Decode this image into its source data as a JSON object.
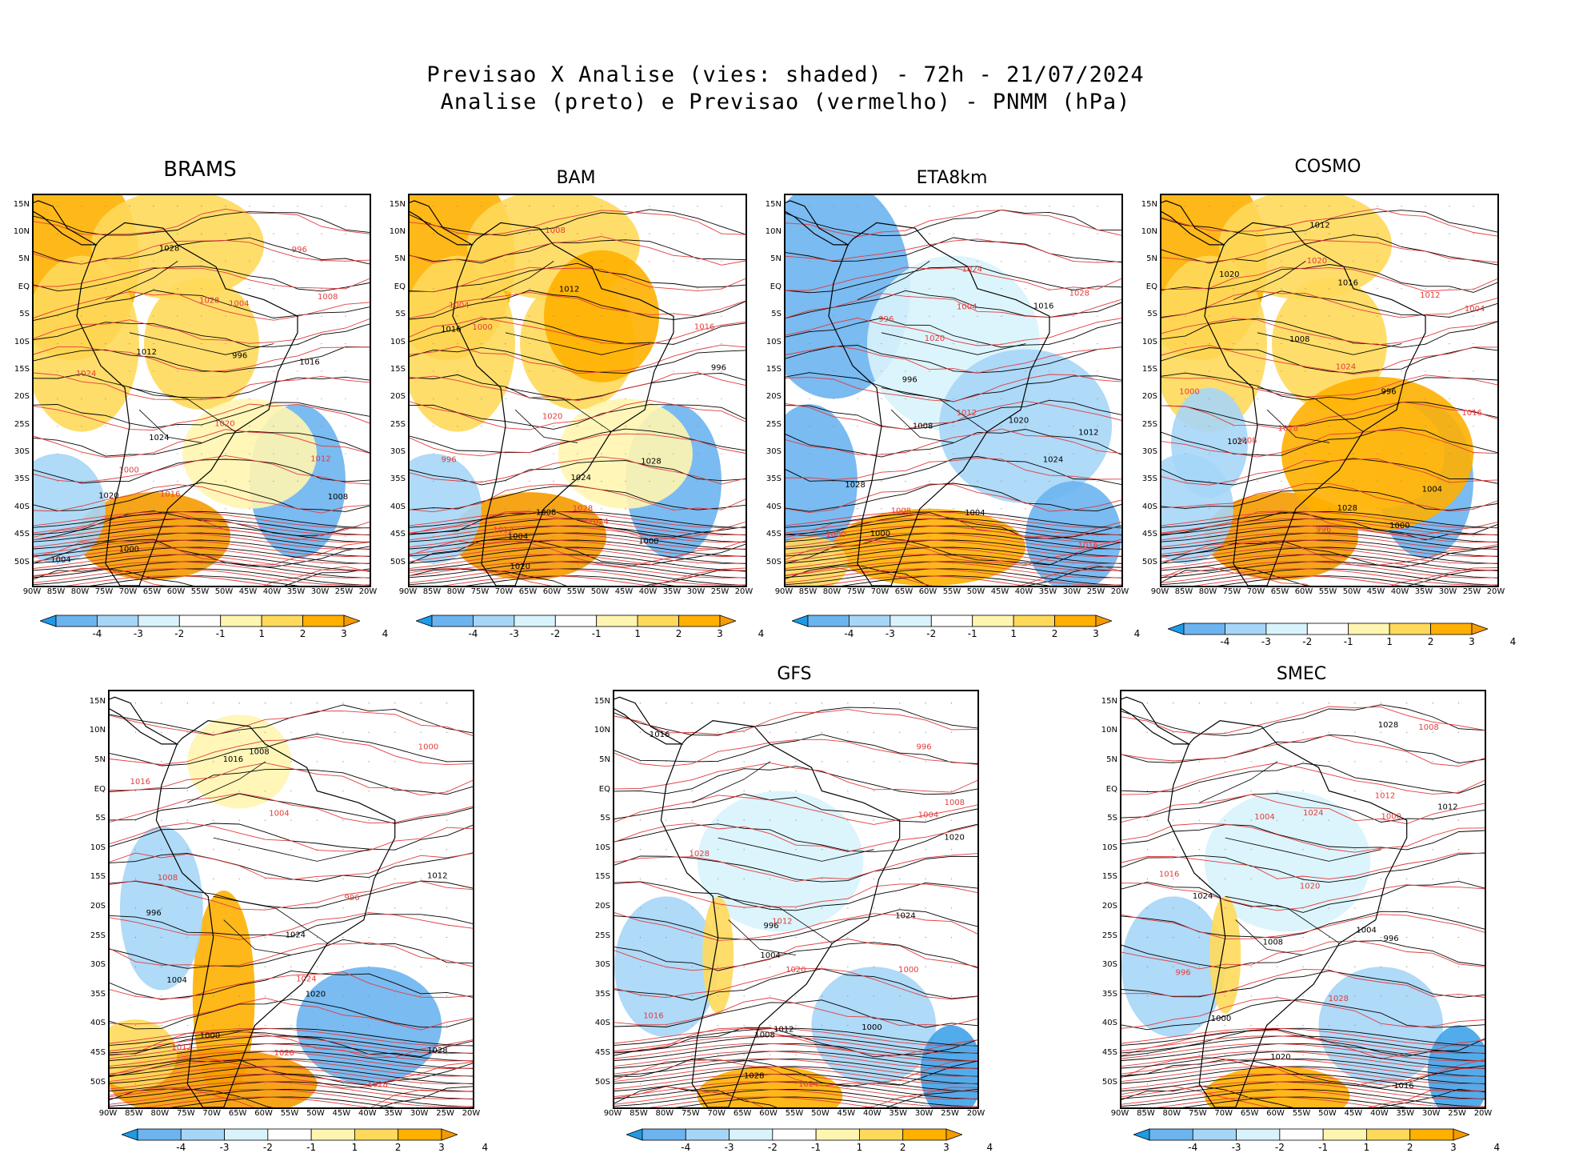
{
  "header": {
    "title_line1": "Previsao X Analise (vies: shaded) - 72h - 21/07/2024",
    "title_line2": "Analise (preto) e Previsao (vermelho) - PNMM (hPa)"
  },
  "axes": {
    "lat_labels": [
      "15N",
      "10N",
      "5N",
      "EQ",
      "5S",
      "10S",
      "15S",
      "20S",
      "25S",
      "30S",
      "35S",
      "40S",
      "45S",
      "50S"
    ],
    "lon_labels": [
      "90W",
      "85W",
      "80W",
      "75W",
      "70W",
      "65W",
      "60W",
      "55W",
      "50W",
      "45W",
      "40W",
      "35W",
      "30W",
      "25W",
      "20W"
    ]
  },
  "colorbar": {
    "labels": [
      "-4",
      "-3",
      "-2",
      "-1",
      "1",
      "2",
      "3",
      "4"
    ],
    "colors": [
      "#1e9be6",
      "#6cb4f0",
      "#a6d6f7",
      "#d8f3fb",
      "#ffffff",
      "#fff5b0",
      "#ffd95a",
      "#ffb000",
      "#f59b00"
    ]
  },
  "colors": {
    "analysis": "#000000",
    "forecast": "#e23c3c",
    "grid": "#888888"
  },
  "panels": [
    {
      "name": "BRAMS",
      "bias": "warm",
      "labels": [
        "1008",
        "1012",
        "1016",
        "1020",
        "1024",
        "1028",
        "1004",
        "1000",
        "996"
      ]
    },
    {
      "name": "BAM",
      "bias": "warm",
      "labels": [
        "1012",
        "1016",
        "1020",
        "1024",
        "1028",
        "1008",
        "1004",
        "1000",
        "996"
      ]
    },
    {
      "name": "ETA8km",
      "bias": "cold",
      "labels": [
        "1012",
        "1016",
        "1020",
        "1024",
        "1028",
        "1008",
        "1004",
        "1000",
        "996"
      ]
    },
    {
      "name": "COSMO",
      "bias": "warm",
      "labels": [
        "1012",
        "1016",
        "1020",
        "1024",
        "1028",
        "1008",
        "1004",
        "1000",
        "996"
      ]
    },
    {
      "name": "",
      "bias": "mixed",
      "labels": [
        "1012",
        "1016",
        "1020",
        "1024",
        "1028",
        "1008",
        "1004",
        "1000",
        "996"
      ]
    },
    {
      "name": "GFS",
      "bias": "cool",
      "labels": [
        "1012",
        "1016",
        "1020",
        "1024",
        "1028",
        "1008",
        "1004",
        "1000",
        "996"
      ]
    },
    {
      "name": "SMEC",
      "bias": "cool",
      "labels": [
        "1012",
        "1016",
        "1020",
        "1024",
        "1028",
        "1008",
        "1004",
        "1000",
        "996"
      ]
    }
  ]
}
